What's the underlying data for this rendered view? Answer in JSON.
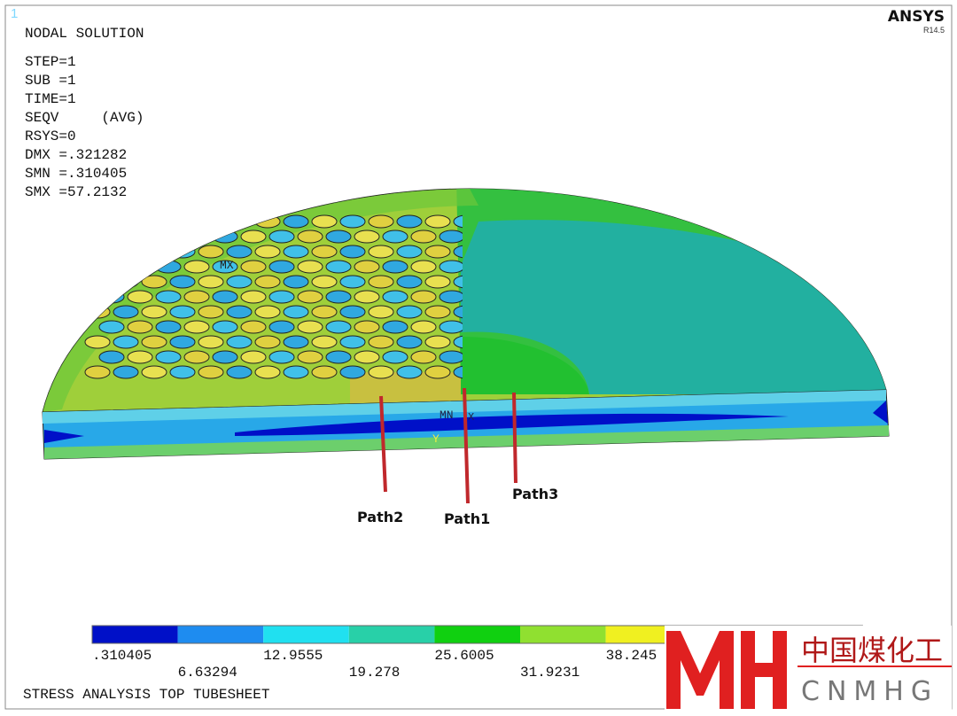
{
  "window_number": "1",
  "brand": {
    "name": "ANSYS",
    "version": "R14.5"
  },
  "info_lines": [
    "NODAL SOLUTION",
    "STEP=1",
    "SUB =1",
    "TIME=1",
    "SEQV     (AVG)",
    "RSYS=0",
    "DMX =.321282",
    "SMN =.310405",
    "SMX =57.2132"
  ],
  "markers": {
    "max": "MX",
    "min": "MN",
    "axis_y": "Y",
    "axis_x": "X"
  },
  "paths": [
    "Path2",
    "Path1",
    "Path3"
  ],
  "legend": {
    "labels": [
      ".310405",
      "6.63294",
      "12.9555",
      "19.278",
      "25.6005",
      "31.9231",
      "38.245"
    ]
  },
  "footer": "STRESS ANALYSIS TOP TUBESHEET",
  "watermark": {
    "cn": "中国煤化工",
    "en": "CNMHG"
  }
}
